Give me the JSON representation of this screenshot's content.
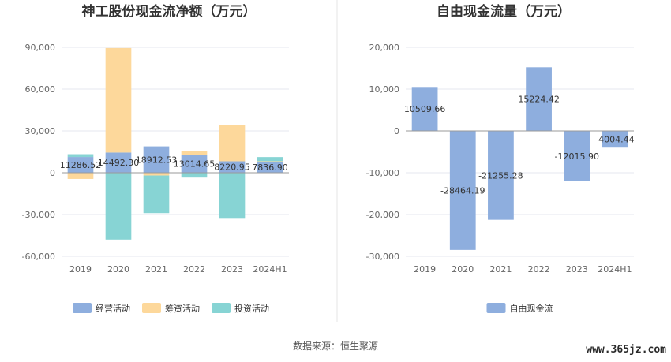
{
  "chart_data": [
    {
      "type": "bar",
      "stacked": true,
      "title": "神工股份现金流净额（万元）",
      "categories": [
        "2019",
        "2020",
        "2021",
        "2022",
        "2023",
        "2024H1"
      ],
      "series": [
        {
          "name": "经营活动",
          "color": "#8eaede",
          "values": [
            11286.52,
            14492.3,
            18912.53,
            13014.65,
            8220.95,
            7836.9
          ]
        },
        {
          "name": "筹资活动",
          "color": "#fdd89b",
          "values": [
            -4500,
            75000,
            -2000,
            2500,
            26000,
            400
          ]
        },
        {
          "name": "投资活动",
          "color": "#87d4d4",
          "values": [
            2000,
            -48000,
            -27000,
            -3500,
            -33000,
            3000
          ]
        }
      ],
      "data_labels": [
        "11286.52",
        "14492.30",
        "18912.53",
        "13014.65",
        "8220.95",
        "7836.90"
      ],
      "yticks": [
        "90,000",
        "60,000",
        "30,000",
        "0",
        "-30,000",
        "-60,000"
      ],
      "ylim": [
        -60000,
        90000
      ],
      "grid": true,
      "legend_position": "bottom"
    },
    {
      "type": "bar",
      "title": "自由现金流量（万元）",
      "categories": [
        "2019",
        "2020",
        "2021",
        "2022",
        "2023",
        "2024H1"
      ],
      "series": [
        {
          "name": "自由现金流",
          "color": "#8eaede",
          "values": [
            10509.66,
            -28464.19,
            -21255.28,
            15224.42,
            -12015.9,
            -4004.44
          ]
        }
      ],
      "data_labels": [
        "10509.66",
        "-28464.19",
        "-21255.28",
        "15224.42",
        "-12015.90",
        "-4004.44"
      ],
      "yticks": [
        "20,000",
        "10,000",
        "0",
        "-10,000",
        "-20,000",
        "-30,000"
      ],
      "ylim": [
        -30000,
        20000
      ],
      "grid": true,
      "legend_position": "bottom"
    }
  ],
  "footer": {
    "source": "数据来源：恒生聚源",
    "watermark": "www.365jz.com"
  }
}
